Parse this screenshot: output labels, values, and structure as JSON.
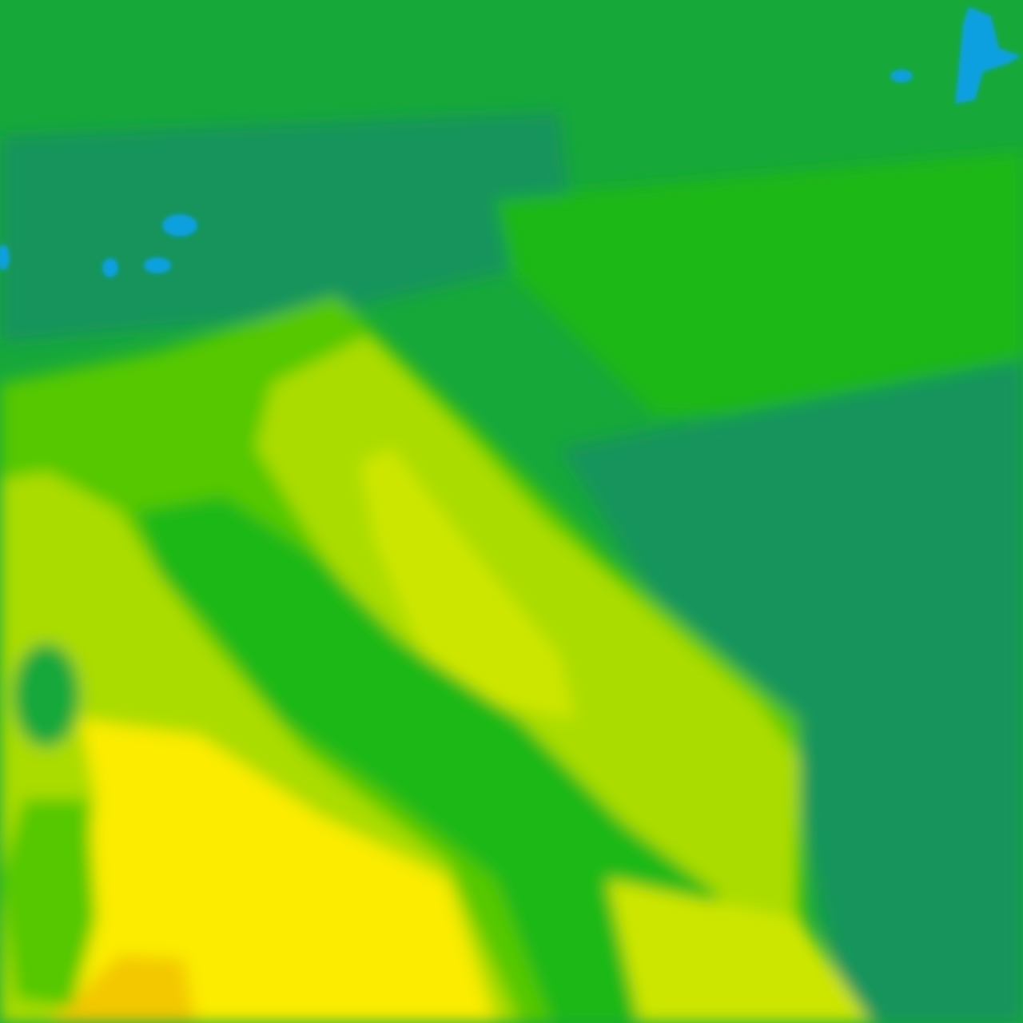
{
  "map": {
    "kind": "weather-field",
    "legend": null,
    "palette": {
      "deep_green": "#12945c",
      "green": "#17a83a",
      "bright_green": "#1fb816",
      "light_green": "#55c800",
      "yellow_green": "#aadc00",
      "lime": "#cde600",
      "yellow": "#fbec00",
      "orange": "#f3c800",
      "blue": "#0aa0e0"
    }
  }
}
